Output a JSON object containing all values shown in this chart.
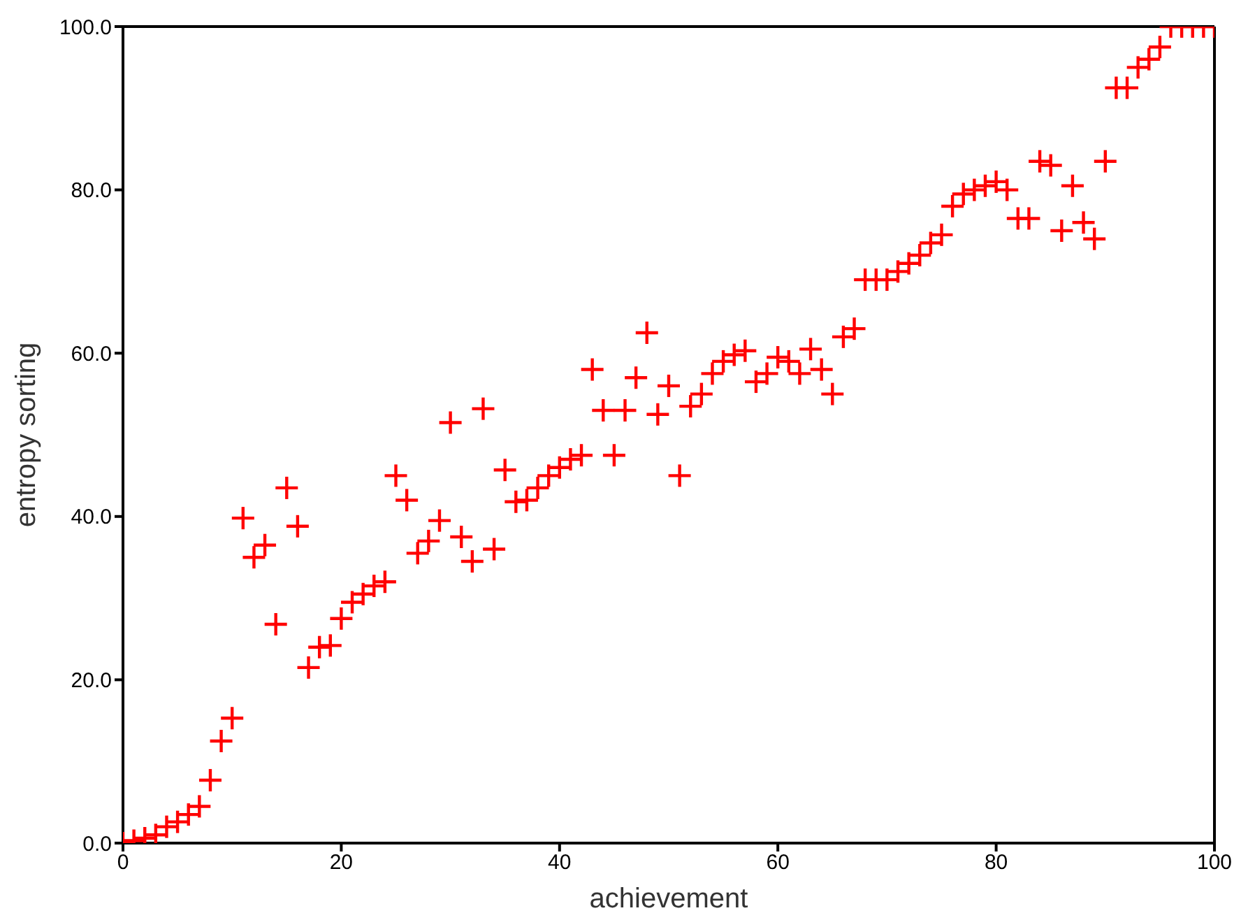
{
  "chart_data": {
    "type": "scatter",
    "xlabel": "achievement",
    "ylabel": "entropy sorting",
    "x": [
      0,
      1,
      2,
      3,
      4,
      5,
      6,
      7,
      8,
      9,
      10,
      11,
      12,
      13,
      14,
      15,
      16,
      17,
      18,
      19,
      20,
      21,
      22,
      23,
      24,
      25,
      26,
      27,
      28,
      29,
      30,
      31,
      32,
      33,
      34,
      35,
      36,
      37,
      38,
      39,
      40,
      41,
      42,
      43,
      44,
      45,
      46,
      47,
      48,
      49,
      50,
      51,
      52,
      53,
      54,
      55,
      56,
      57,
      58,
      59,
      60,
      61,
      62,
      63,
      64,
      65,
      66,
      67,
      68,
      69,
      70,
      71,
      72,
      73,
      74,
      75,
      76,
      77,
      78,
      79,
      80,
      81,
      82,
      83,
      84,
      85,
      86,
      87,
      88,
      89,
      90,
      91,
      92,
      93,
      94,
      95,
      96,
      97,
      98,
      99,
      100
    ],
    "series": [
      {
        "color": "#ff0000",
        "values": [
          0,
          0.3,
          0.6,
          1,
          2,
          2.6,
          3.5,
          4.5,
          7.7,
          12.5,
          15.3,
          39.8,
          35,
          36.5,
          26.8,
          43.5,
          38.8,
          21.5,
          24,
          24.2,
          27.5,
          29.5,
          30.5,
          31.5,
          32,
          45,
          42,
          35.5,
          37,
          39.5,
          51.5,
          37.5,
          34.5,
          53.2,
          36,
          45.7,
          41.8,
          42,
          43.5,
          45,
          46,
          47,
          47.5,
          58,
          53,
          47.5,
          53,
          57,
          62.5,
          52.5,
          56,
          45,
          53.5,
          55,
          57.5,
          59,
          59.8,
          60.3,
          56.5,
          57.5,
          59.5,
          59,
          57.5,
          60.5,
          58,
          55,
          62,
          63,
          69,
          69,
          69,
          70,
          71,
          72,
          73.5,
          74.5,
          78,
          79.5,
          80,
          80.5,
          81,
          80,
          76.5,
          76.5,
          83.5,
          83,
          75,
          80.5,
          76,
          74,
          83.5,
          92.5,
          92.5,
          95,
          96,
          97.5,
          100,
          100,
          100,
          100,
          100
        ]
      }
    ],
    "xlim": [
      0,
      100
    ],
    "xticks": [
      0,
      20,
      40,
      60,
      80,
      100
    ],
    "ylim": [
      0,
      100
    ],
    "yticks": [
      {
        "value": 0,
        "label": "0.0"
      },
      {
        "value": 20,
        "label": "20.0"
      },
      {
        "value": 40,
        "label": "40.0"
      },
      {
        "value": 60,
        "label": "60.0"
      },
      {
        "value": 80,
        "label": "80.0"
      },
      {
        "value": 100,
        "label": "100.0"
      }
    ],
    "marker": "cross",
    "grid": false
  }
}
